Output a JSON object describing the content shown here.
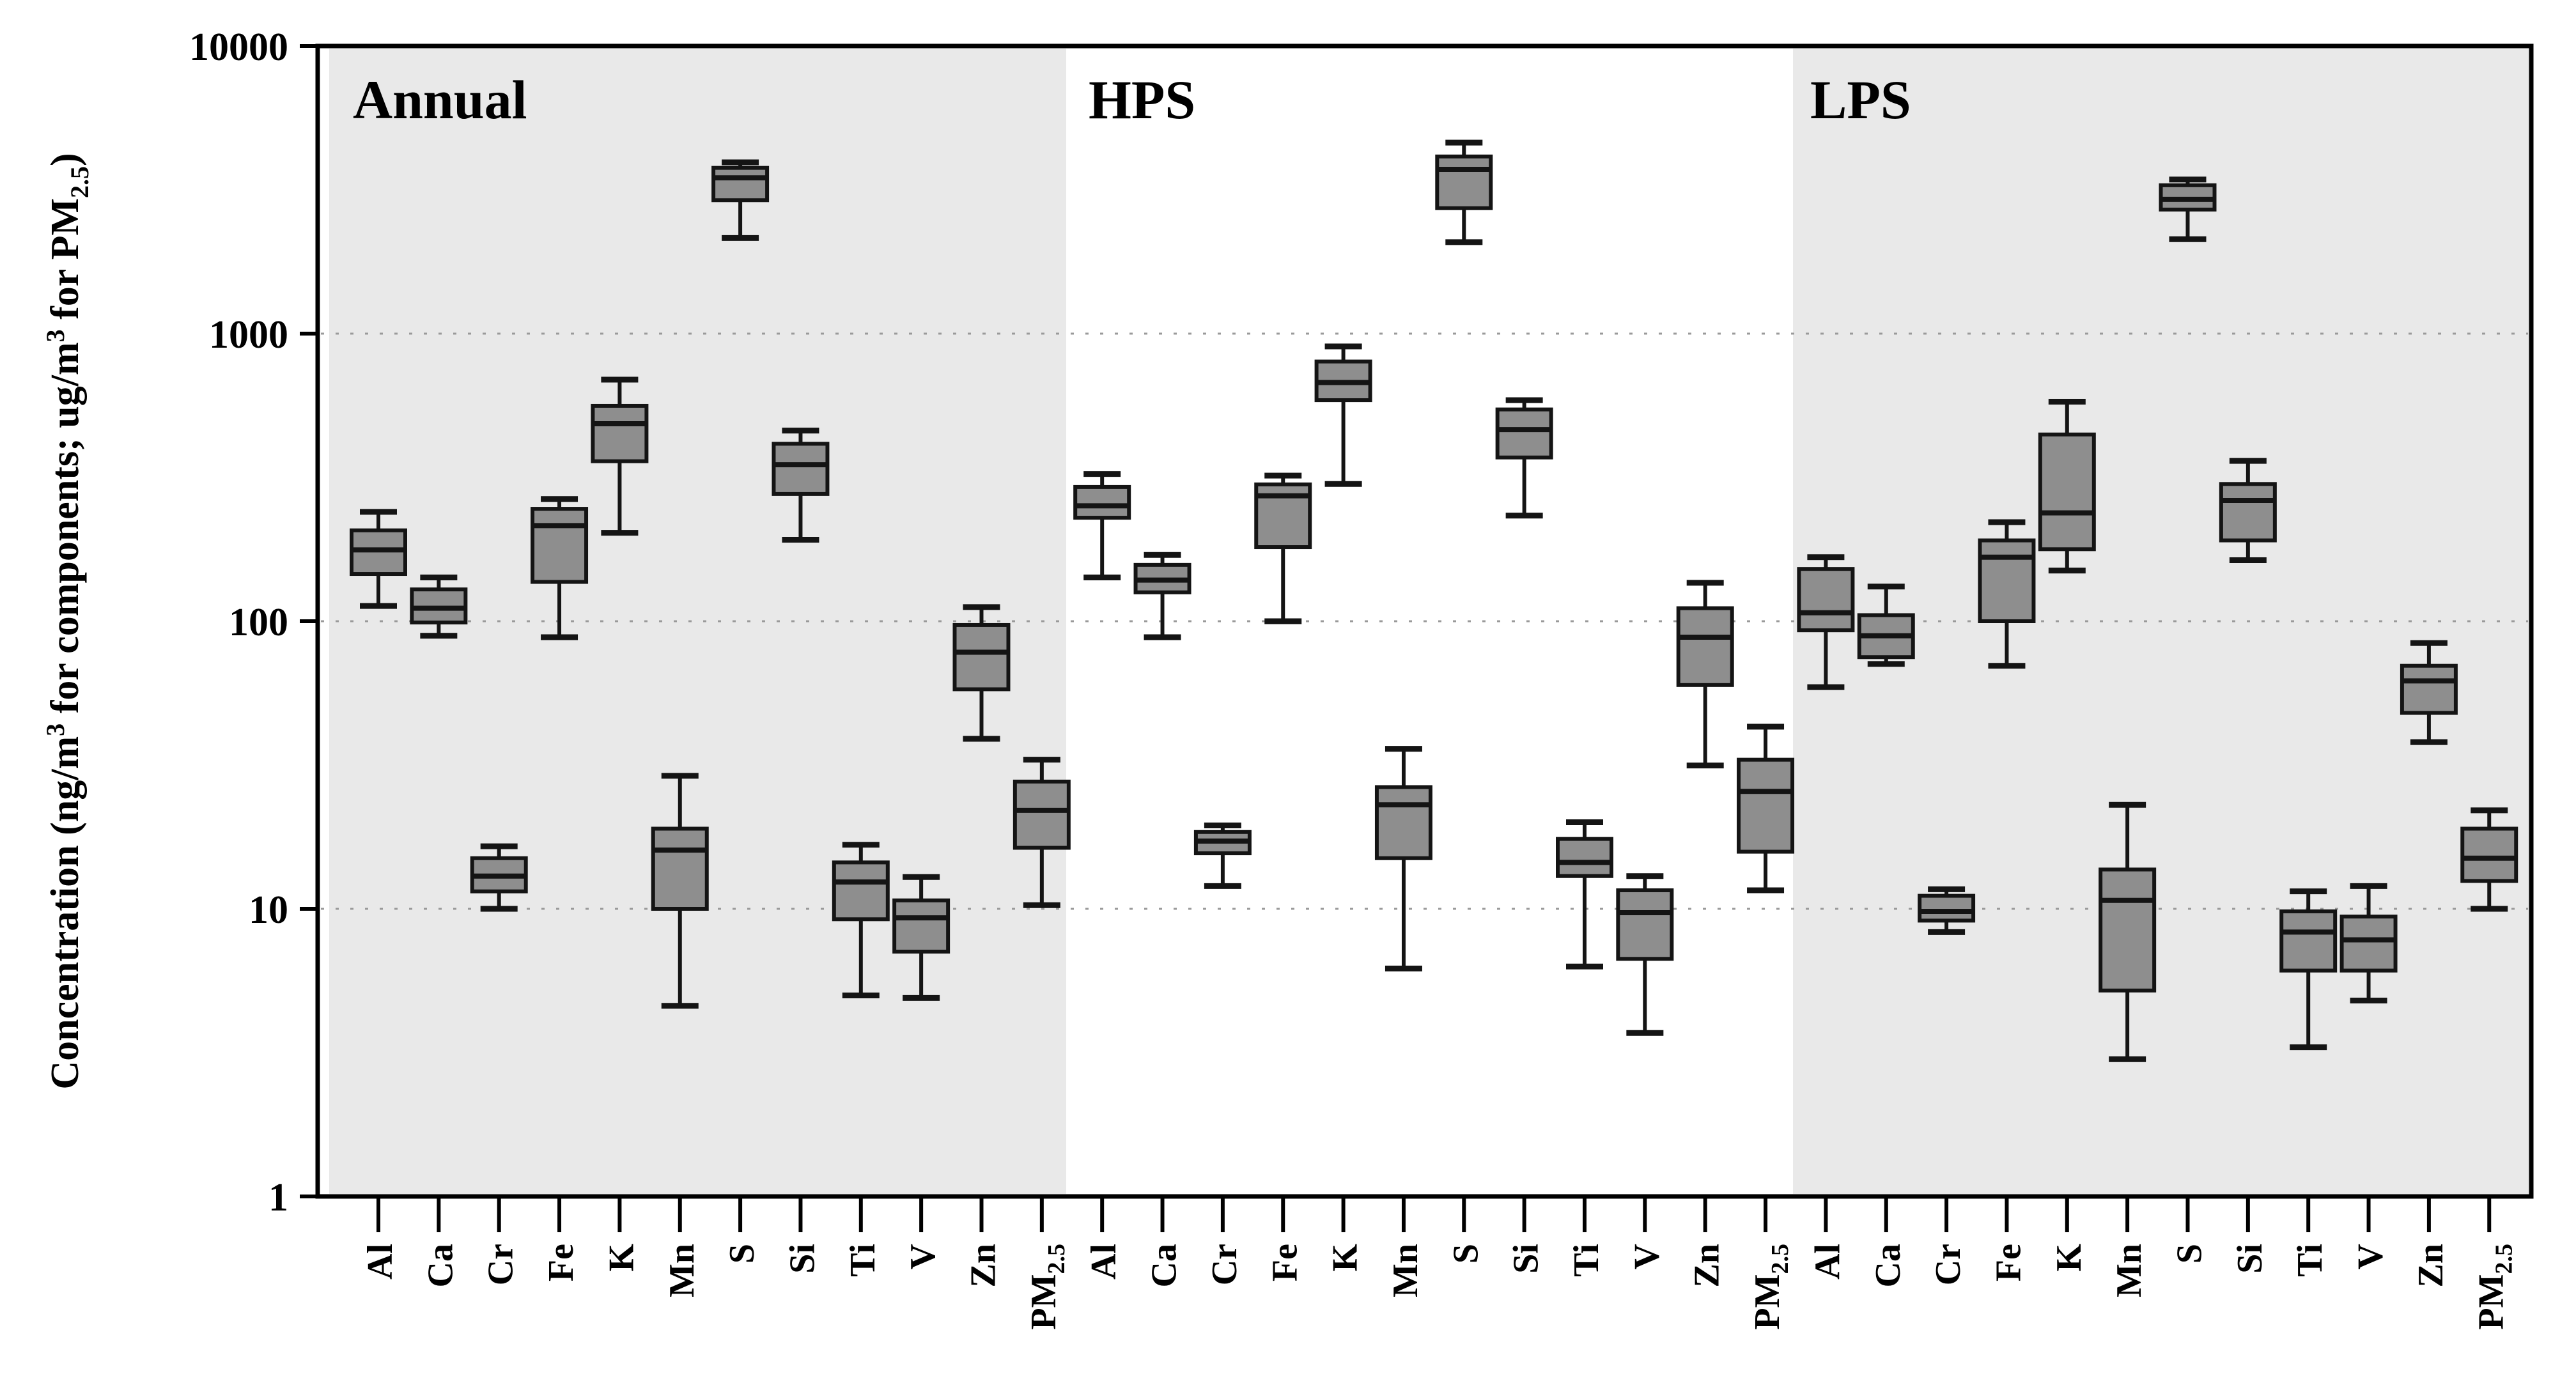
{
  "figure_title": "",
  "colors": {
    "background": "#ffffff",
    "panel_shade": "#e9e9e9",
    "box_fill": "#8e8e8e",
    "box_stroke": "#141414",
    "grid_line": "#9a9a9a",
    "axis_line": "#000000",
    "text": "#000000"
  },
  "chart_data": {
    "type": "boxplot",
    "yscale": "log",
    "ylim": [
      1,
      10000
    ],
    "ylabel_plain": "Concentration (ng/m3 for components; ug/m3 for PM2.5)",
    "ylabel_parts": [
      {
        "text": "Concentration (ng/m"
      },
      {
        "text": "3",
        "style": "sup"
      },
      {
        "text": " for components; ug/m"
      },
      {
        "text": "3",
        "style": "sup"
      },
      {
        "text": " for PM"
      },
      {
        "text": "2.5",
        "style": "sub"
      },
      {
        "text": ")"
      }
    ],
    "y_ticks": [
      {
        "value": 10000,
        "label": "10000"
      },
      {
        "value": 1000,
        "label": "1000"
      },
      {
        "value": 100,
        "label": "100"
      },
      {
        "value": 10,
        "label": "10"
      },
      {
        "value": 1,
        "label": "1"
      }
    ],
    "gridline_values": [
      1000,
      100,
      10
    ],
    "grid_on": true,
    "legend": null,
    "categories": [
      {
        "label": "Al"
      },
      {
        "label": "Ca"
      },
      {
        "label": "Cr"
      },
      {
        "label": "Fe"
      },
      {
        "label": "K"
      },
      {
        "label": "Mn"
      },
      {
        "label": "S"
      },
      {
        "label": "Si"
      },
      {
        "label": "Ti"
      },
      {
        "label": "V"
      },
      {
        "label": "Zn"
      },
      {
        "label": "PM",
        "sub": "2.5"
      }
    ],
    "panels": [
      {
        "label": "Annual",
        "shaded": true,
        "boxes": [
          {
            "cat": "Al",
            "whislo": 113,
            "q1": 146,
            "med": 177,
            "q3": 207,
            "whishi": 240
          },
          {
            "cat": "Ca",
            "whislo": 89,
            "q1": 99,
            "med": 111,
            "q3": 129,
            "whishi": 142
          },
          {
            "cat": "Cr",
            "whislo": 10,
            "q1": 11.5,
            "med": 13,
            "q3": 15,
            "whishi": 16.5
          },
          {
            "cat": "Fe",
            "whislo": 88,
            "q1": 137,
            "med": 215,
            "q3": 246,
            "whishi": 266
          },
          {
            "cat": "K",
            "whislo": 203,
            "q1": 360,
            "med": 486,
            "q3": 561,
            "whishi": 692
          },
          {
            "cat": "Mn",
            "whislo": 4.6,
            "q1": 10,
            "med": 16,
            "q3": 19,
            "whishi": 29
          },
          {
            "cat": "S",
            "whislo": 2150,
            "q1": 2910,
            "med": 3480,
            "q3": 3770,
            "whishi": 3940
          },
          {
            "cat": "Si",
            "whislo": 192,
            "q1": 277,
            "med": 350,
            "q3": 414,
            "whishi": 460
          },
          {
            "cat": "Ti",
            "whislo": 5.0,
            "q1": 9.2,
            "med": 12.4,
            "q3": 14.5,
            "whishi": 16.7
          },
          {
            "cat": "V",
            "whislo": 4.9,
            "q1": 7.1,
            "med": 9.3,
            "q3": 10.7,
            "whishi": 12.9
          },
          {
            "cat": "Zn",
            "whislo": 39,
            "q1": 58,
            "med": 78,
            "q3": 97,
            "whishi": 112
          },
          {
            "cat": "PM2.5",
            "whislo": 10.3,
            "q1": 16.3,
            "med": 22,
            "q3": 27.7,
            "whishi": 33
          }
        ]
      },
      {
        "label": "HPS",
        "shaded": false,
        "boxes": [
          {
            "cat": "Al",
            "whislo": 142,
            "q1": 229,
            "med": 252,
            "q3": 293,
            "whishi": 325
          },
          {
            "cat": "Ca",
            "whislo": 88,
            "q1": 126,
            "med": 139,
            "q3": 157,
            "whishi": 170
          },
          {
            "cat": "Cr",
            "whislo": 12,
            "q1": 15.6,
            "med": 17.2,
            "q3": 18.5,
            "whishi": 19.5
          },
          {
            "cat": "Fe",
            "whislo": 100,
            "q1": 181,
            "med": 273,
            "q3": 299,
            "whishi": 321
          },
          {
            "cat": "K",
            "whislo": 300,
            "q1": 587,
            "med": 676,
            "q3": 800,
            "whishi": 903
          },
          {
            "cat": "Mn",
            "whislo": 6.2,
            "q1": 15,
            "med": 23,
            "q3": 26.5,
            "whishi": 36
          },
          {
            "cat": "S",
            "whislo": 2080,
            "q1": 2730,
            "med": 3725,
            "q3": 4130,
            "whishi": 4615
          },
          {
            "cat": "Si",
            "whislo": 233,
            "q1": 371,
            "med": 464,
            "q3": 545,
            "whishi": 587
          },
          {
            "cat": "Ti",
            "whislo": 6.3,
            "q1": 13,
            "med": 14.5,
            "q3": 17.5,
            "whishi": 20
          },
          {
            "cat": "V",
            "whislo": 3.7,
            "q1": 6.7,
            "med": 9.7,
            "q3": 11.6,
            "whishi": 13
          },
          {
            "cat": "Zn",
            "whislo": 31.5,
            "q1": 60,
            "med": 88,
            "q3": 111,
            "whishi": 136
          },
          {
            "cat": "PM2.5",
            "whislo": 11.6,
            "q1": 15.8,
            "med": 25.6,
            "q3": 33,
            "whishi": 43
          }
        ]
      },
      {
        "label": "LPS",
        "shaded": true,
        "boxes": [
          {
            "cat": "Al",
            "whislo": 59,
            "q1": 93,
            "med": 107,
            "q3": 152,
            "whishi": 167
          },
          {
            "cat": "Ca",
            "whislo": 71,
            "q1": 75,
            "med": 89,
            "q3": 105,
            "whishi": 132
          },
          {
            "cat": "Cr",
            "whislo": 8.3,
            "q1": 9.1,
            "med": 9.8,
            "q3": 11.1,
            "whishi": 11.7
          },
          {
            "cat": "Fe",
            "whislo": 70,
            "q1": 100,
            "med": 167,
            "q3": 191,
            "whishi": 221
          },
          {
            "cat": "K",
            "whislo": 150,
            "q1": 178,
            "med": 238,
            "q3": 446,
            "whishi": 580
          },
          {
            "cat": "Mn",
            "whislo": 3.0,
            "q1": 5.2,
            "med": 10.7,
            "q3": 13.7,
            "whishi": 23
          },
          {
            "cat": "S",
            "whislo": 2130,
            "q1": 2700,
            "med": 2930,
            "q3": 3280,
            "whishi": 3435
          },
          {
            "cat": "Si",
            "whislo": 163,
            "q1": 191,
            "med": 263,
            "q3": 300,
            "whishi": 361
          },
          {
            "cat": "Ti",
            "whislo": 3.3,
            "q1": 6.1,
            "med": 8.3,
            "q3": 9.8,
            "whishi": 11.5
          },
          {
            "cat": "V",
            "whislo": 4.8,
            "q1": 6.1,
            "med": 7.8,
            "q3": 9.4,
            "whishi": 12
          },
          {
            "cat": "Zn",
            "whislo": 38,
            "q1": 48,
            "med": 62,
            "q3": 70,
            "whishi": 84
          },
          {
            "cat": "PM2.5",
            "whislo": 10,
            "q1": 12.5,
            "med": 15,
            "q3": 19,
            "whishi": 22
          }
        ]
      }
    ]
  }
}
